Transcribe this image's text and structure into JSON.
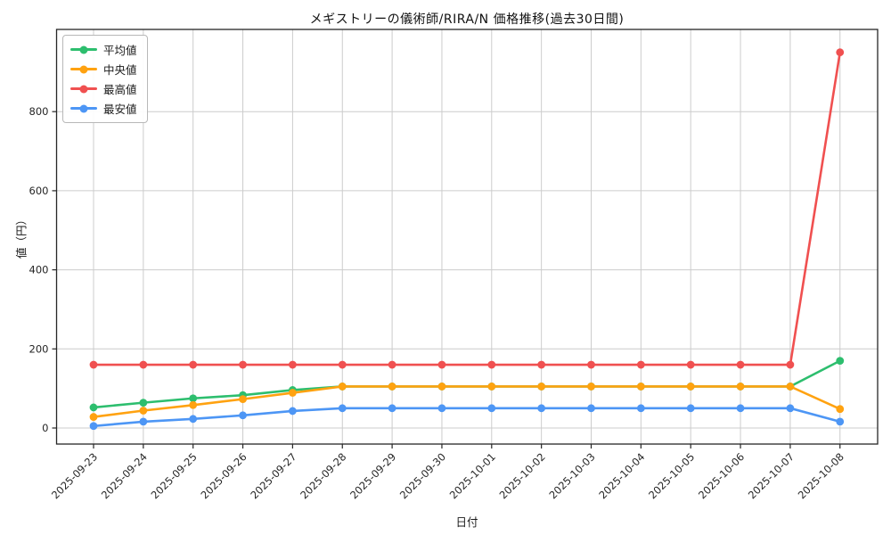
{
  "title": "メギストリーの儀術師/RIRA/N 価格推移(過去30日間)",
  "chart_data": {
    "type": "line",
    "title": "メギストリーの儀術師/RIRA/N 価格推移(過去30日間)",
    "xlabel": "日付",
    "ylabel": "値（円）",
    "x": [
      "2025-09-23",
      "2025-09-24",
      "2025-09-25",
      "2025-09-26",
      "2025-09-27",
      "2025-09-28",
      "2025-09-29",
      "2025-09-30",
      "2025-10-01",
      "2025-10-02",
      "2025-10-03",
      "2025-10-04",
      "2025-10-05",
      "2025-10-06",
      "2025-10-07",
      "2025-10-08"
    ],
    "yticks": [
      0,
      200,
      400,
      600,
      800
    ],
    "ylim": [
      -40,
      1010
    ],
    "grid": true,
    "legend_position": "upper left",
    "series": [
      {
        "name": "平均値",
        "key": "average",
        "color": "#2dbe6e",
        "values": [
          52,
          64,
          75,
          83,
          96,
          105,
          105,
          105,
          105,
          105,
          105,
          105,
          105,
          105,
          105,
          170
        ]
      },
      {
        "name": "中央値",
        "key": "median",
        "color": "#ffa210",
        "values": [
          28,
          44,
          58,
          73,
          89,
          105,
          105,
          105,
          105,
          105,
          105,
          105,
          105,
          105,
          105,
          48
        ]
      },
      {
        "name": "最高値",
        "key": "max",
        "color": "#f05050",
        "values": [
          160,
          160,
          160,
          160,
          160,
          160,
          160,
          160,
          160,
          160,
          160,
          160,
          160,
          160,
          160,
          950
        ]
      },
      {
        "name": "最安値",
        "key": "min",
        "color": "#4d96f5",
        "values": [
          5,
          16,
          23,
          32,
          43,
          50,
          50,
          50,
          50,
          50,
          50,
          50,
          50,
          50,
          50,
          16
        ]
      }
    ],
    "colors": {
      "grid": "#cccccc",
      "spine": "#262626",
      "tick_text": "#262626"
    }
  }
}
